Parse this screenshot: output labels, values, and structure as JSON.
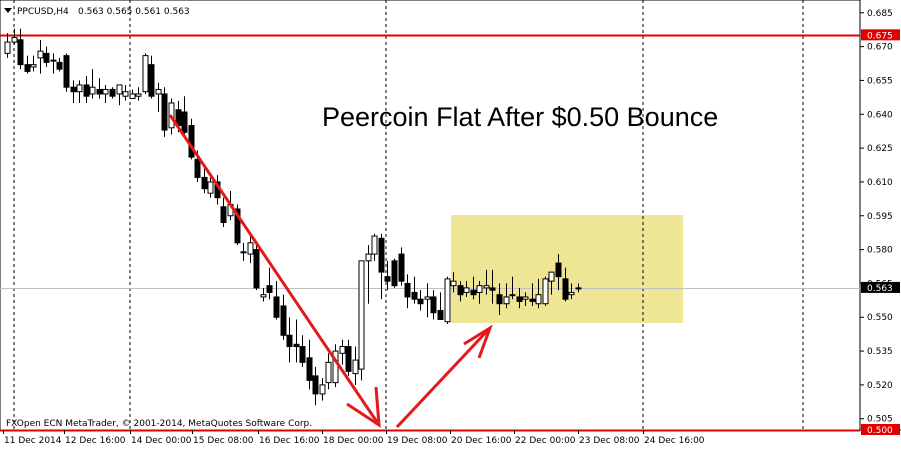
{
  "header": {
    "symbol_label": "PPCUSD,H4",
    "ohlc_text": "0.563 0.565 0.561 0.563"
  },
  "annotation": {
    "title": "Peercoin Flat After $0.50 Bounce"
  },
  "footer": {
    "credit": "FXOpen ECN MetaTrader, © 2001-2014, MetaQuotes Software Corp."
  },
  "colors": {
    "background": "#ffffff",
    "candle": "#000000",
    "level_line": "#e00000",
    "arrow": "#e31a1a",
    "range_box": "#ede58f",
    "price_label_bg": "#000000",
    "level_label_bg": "#e00000"
  },
  "chart_data": {
    "type": "candlestick",
    "ylim": [
      0.5,
      0.69
    ],
    "y_ticks": [
      "0.685",
      "0.670",
      "0.655",
      "0.640",
      "0.625",
      "0.610",
      "0.595",
      "0.580",
      "0.565",
      "0.550",
      "0.535",
      "0.520",
      "0.505"
    ],
    "x_tick_labels": [
      "11 Dec 2014",
      "12 Dec 16:00",
      "14 Dec 00:00",
      "15 Dec 08:00",
      "16 Dec 16:00",
      "18 Dec 00:00",
      "19 Dec 08:00",
      "20 Dec 16:00",
      "22 Dec 00:00",
      "23 Dec 08:00",
      "24 Dec 16:00"
    ],
    "current_price": 0.563,
    "current_price_label": "0.563",
    "levels": [
      {
        "value": 0.675,
        "label": "0.675"
      },
      {
        "value": 0.5,
        "label": "0.500"
      }
    ],
    "grid": false,
    "candles": [
      {
        "o": 0.667,
        "h": 0.676,
        "l": 0.665,
        "c": 0.672
      },
      {
        "o": 0.672,
        "h": 0.678,
        "l": 0.671,
        "c": 0.674
      },
      {
        "o": 0.673,
        "h": 0.678,
        "l": 0.66,
        "c": 0.662
      },
      {
        "o": 0.662,
        "h": 0.666,
        "l": 0.658,
        "c": 0.659
      },
      {
        "o": 0.661,
        "h": 0.666,
        "l": 0.659,
        "c": 0.662
      },
      {
        "o": 0.665,
        "h": 0.673,
        "l": 0.658,
        "c": 0.668
      },
      {
        "o": 0.667,
        "h": 0.67,
        "l": 0.661,
        "c": 0.663
      },
      {
        "o": 0.664,
        "h": 0.667,
        "l": 0.658,
        "c": 0.664
      },
      {
        "o": 0.663,
        "h": 0.665,
        "l": 0.659,
        "c": 0.66
      },
      {
        "o": 0.666,
        "h": 0.667,
        "l": 0.65,
        "c": 0.652
      },
      {
        "o": 0.652,
        "h": 0.655,
        "l": 0.645,
        "c": 0.65
      },
      {
        "o": 0.65,
        "h": 0.655,
        "l": 0.645,
        "c": 0.653
      },
      {
        "o": 0.653,
        "h": 0.657,
        "l": 0.645,
        "c": 0.648
      },
      {
        "o": 0.649,
        "h": 0.66,
        "l": 0.647,
        "c": 0.652
      },
      {
        "o": 0.651,
        "h": 0.656,
        "l": 0.647,
        "c": 0.649
      },
      {
        "o": 0.649,
        "h": 0.653,
        "l": 0.645,
        "c": 0.651
      },
      {
        "o": 0.651,
        "h": 0.652,
        "l": 0.647,
        "c": 0.648
      },
      {
        "o": 0.649,
        "h": 0.652,
        "l": 0.644,
        "c": 0.653
      },
      {
        "o": 0.648,
        "h": 0.653,
        "l": 0.646,
        "c": 0.65
      },
      {
        "o": 0.647,
        "h": 0.651,
        "l": 0.648,
        "c": 0.649
      },
      {
        "o": 0.648,
        "h": 0.652,
        "l": 0.646,
        "c": 0.649
      },
      {
        "o": 0.65,
        "h": 0.667,
        "l": 0.649,
        "c": 0.666
      },
      {
        "o": 0.662,
        "h": 0.666,
        "l": 0.647,
        "c": 0.648
      },
      {
        "o": 0.649,
        "h": 0.654,
        "l": 0.641,
        "c": 0.651
      },
      {
        "o": 0.649,
        "h": 0.652,
        "l": 0.63,
        "c": 0.633
      },
      {
        "o": 0.634,
        "h": 0.647,
        "l": 0.631,
        "c": 0.645
      },
      {
        "o": 0.642,
        "h": 0.646,
        "l": 0.632,
        "c": 0.635
      },
      {
        "o": 0.641,
        "h": 0.648,
        "l": 0.63,
        "c": 0.632
      },
      {
        "o": 0.635,
        "h": 0.638,
        "l": 0.62,
        "c": 0.621
      },
      {
        "o": 0.62,
        "h": 0.624,
        "l": 0.61,
        "c": 0.612
      },
      {
        "o": 0.612,
        "h": 0.616,
        "l": 0.605,
        "c": 0.607
      },
      {
        "o": 0.605,
        "h": 0.612,
        "l": 0.603,
        "c": 0.61
      },
      {
        "o": 0.61,
        "h": 0.613,
        "l": 0.6,
        "c": 0.603
      },
      {
        "o": 0.599,
        "h": 0.603,
        "l": 0.59,
        "c": 0.592
      },
      {
        "o": 0.595,
        "h": 0.606,
        "l": 0.593,
        "c": 0.6
      },
      {
        "o": 0.598,
        "h": 0.6,
        "l": 0.582,
        "c": 0.583
      },
      {
        "o": 0.579,
        "h": 0.583,
        "l": 0.575,
        "c": 0.579
      },
      {
        "o": 0.578,
        "h": 0.586,
        "l": 0.574,
        "c": 0.583
      },
      {
        "o": 0.58,
        "h": 0.583,
        "l": 0.562,
        "c": 0.563
      },
      {
        "o": 0.559,
        "h": 0.563,
        "l": 0.557,
        "c": 0.56
      },
      {
        "o": 0.564,
        "h": 0.572,
        "l": 0.558,
        "c": 0.561
      },
      {
        "o": 0.559,
        "h": 0.566,
        "l": 0.549,
        "c": 0.55
      },
      {
        "o": 0.555,
        "h": 0.56,
        "l": 0.54,
        "c": 0.542
      },
      {
        "o": 0.542,
        "h": 0.55,
        "l": 0.53,
        "c": 0.537
      },
      {
        "o": 0.538,
        "h": 0.549,
        "l": 0.53,
        "c": 0.537
      },
      {
        "o": 0.537,
        "h": 0.542,
        "l": 0.528,
        "c": 0.53
      },
      {
        "o": 0.532,
        "h": 0.54,
        "l": 0.518,
        "c": 0.522
      },
      {
        "o": 0.524,
        "h": 0.528,
        "l": 0.511,
        "c": 0.516
      },
      {
        "o": 0.516,
        "h": 0.523,
        "l": 0.513,
        "c": 0.52
      },
      {
        "o": 0.521,
        "h": 0.534,
        "l": 0.518,
        "c": 0.53
      },
      {
        "o": 0.521,
        "h": 0.538,
        "l": 0.519,
        "c": 0.535
      },
      {
        "o": 0.534,
        "h": 0.54,
        "l": 0.529,
        "c": 0.537
      },
      {
        "o": 0.537,
        "h": 0.54,
        "l": 0.524,
        "c": 0.526
      },
      {
        "o": 0.525,
        "h": 0.537,
        "l": 0.52,
        "c": 0.531
      },
      {
        "o": 0.527,
        "h": 0.575,
        "l": 0.522,
        "c": 0.575
      },
      {
        "o": 0.575,
        "h": 0.582,
        "l": 0.556,
        "c": 0.578
      },
      {
        "o": 0.578,
        "h": 0.587,
        "l": 0.575,
        "c": 0.586
      },
      {
        "o": 0.585,
        "h": 0.587,
        "l": 0.558,
        "c": 0.57
      },
      {
        "o": 0.568,
        "h": 0.575,
        "l": 0.562,
        "c": 0.566
      },
      {
        "o": 0.575,
        "h": 0.576,
        "l": 0.563,
        "c": 0.564
      },
      {
        "o": 0.578,
        "h": 0.581,
        "l": 0.564,
        "c": 0.566
      },
      {
        "o": 0.565,
        "h": 0.569,
        "l": 0.554,
        "c": 0.559
      },
      {
        "o": 0.561,
        "h": 0.568,
        "l": 0.556,
        "c": 0.558
      },
      {
        "o": 0.558,
        "h": 0.562,
        "l": 0.553,
        "c": 0.556
      },
      {
        "o": 0.558,
        "h": 0.565,
        "l": 0.55,
        "c": 0.559
      },
      {
        "o": 0.559,
        "h": 0.562,
        "l": 0.549,
        "c": 0.552
      },
      {
        "o": 0.553,
        "h": 0.561,
        "l": 0.549,
        "c": 0.549
      },
      {
        "o": 0.548,
        "h": 0.568,
        "l": 0.547,
        "c": 0.567
      },
      {
        "o": 0.564,
        "h": 0.57,
        "l": 0.561,
        "c": 0.566
      },
      {
        "o": 0.564,
        "h": 0.566,
        "l": 0.557,
        "c": 0.56
      },
      {
        "o": 0.561,
        "h": 0.566,
        "l": 0.559,
        "c": 0.563
      },
      {
        "o": 0.562,
        "h": 0.568,
        "l": 0.558,
        "c": 0.56
      },
      {
        "o": 0.561,
        "h": 0.566,
        "l": 0.556,
        "c": 0.564
      },
      {
        "o": 0.563,
        "h": 0.571,
        "l": 0.56,
        "c": 0.564
      },
      {
        "o": 0.563,
        "h": 0.571,
        "l": 0.556,
        "c": 0.562
      },
      {
        "o": 0.56,
        "h": 0.565,
        "l": 0.551,
        "c": 0.556
      },
      {
        "o": 0.556,
        "h": 0.565,
        "l": 0.554,
        "c": 0.559
      },
      {
        "o": 0.56,
        "h": 0.568,
        "l": 0.558,
        "c": 0.56
      },
      {
        "o": 0.559,
        "h": 0.563,
        "l": 0.554,
        "c": 0.557
      },
      {
        "o": 0.558,
        "h": 0.561,
        "l": 0.555,
        "c": 0.559
      },
      {
        "o": 0.558,
        "h": 0.565,
        "l": 0.555,
        "c": 0.557
      },
      {
        "o": 0.556,
        "h": 0.567,
        "l": 0.554,
        "c": 0.56
      },
      {
        "o": 0.556,
        "h": 0.568,
        "l": 0.555,
        "c": 0.567
      },
      {
        "o": 0.566,
        "h": 0.57,
        "l": 0.56,
        "c": 0.57
      },
      {
        "o": 0.574,
        "h": 0.578,
        "l": 0.562,
        "c": 0.568
      },
      {
        "o": 0.567,
        "h": 0.572,
        "l": 0.557,
        "c": 0.558
      },
      {
        "o": 0.56,
        "h": 0.565,
        "l": 0.558,
        "c": 0.561
      },
      {
        "o": 0.563,
        "h": 0.565,
        "l": 0.561,
        "c": 0.563
      }
    ]
  }
}
